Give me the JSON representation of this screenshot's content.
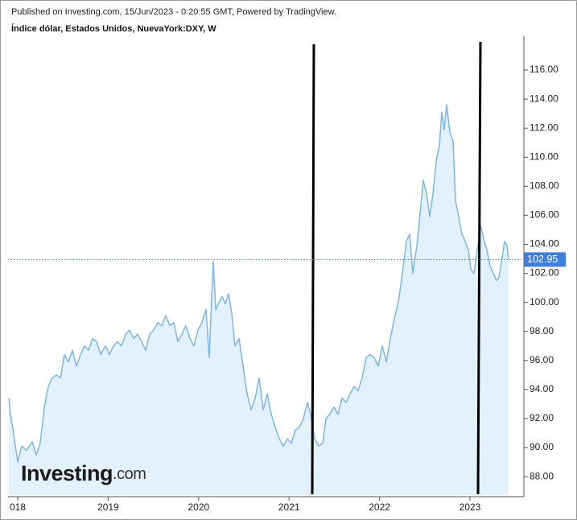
{
  "chart_data": {
    "type": "area",
    "source": "Published on Investing.com, 15/Jun/2023 - 0:20:55 GMT, Powered by TradingView.",
    "title": "Índice dólar, Estados Unidos, NuevaYork:DXY, W",
    "watermark": "Investing",
    "watermark_suffix": ".com",
    "line_color": "#7db6e8",
    "fill_color": "#e2f1fb",
    "price_line_color": "#3d7fd9",
    "x": [
      2017.902,
      2017.92,
      2017.956,
      2018.0,
      2018.044,
      2018.098,
      2018.16,
      2018.205,
      2018.249,
      2018.294,
      2018.338,
      2018.383,
      2018.427,
      2018.472,
      2018.516,
      2018.56,
      2018.605,
      2018.649,
      2018.694,
      2018.738,
      2018.783,
      2018.827,
      2018.872,
      2018.916,
      2018.97,
      2019.014,
      2019.059,
      2019.103,
      2019.148,
      2019.192,
      2019.237,
      2019.281,
      2019.326,
      2019.37,
      2019.415,
      2019.459,
      2019.504,
      2019.548,
      2019.593,
      2019.637,
      2019.681,
      2019.726,
      2019.77,
      2019.815,
      2019.859,
      2019.904,
      2019.948,
      2019.993,
      2020.037,
      2020.082,
      2020.117,
      2020.144,
      2020.162,
      2020.189,
      2020.224,
      2020.26,
      2020.295,
      2020.331,
      2020.367,
      2020.402,
      2020.447,
      2020.491,
      2020.536,
      2020.58,
      2020.625,
      2020.669,
      2020.714,
      2020.758,
      2020.802,
      2020.847,
      2020.891,
      2020.936,
      2020.98,
      2021.025,
      2021.069,
      2021.114,
      2021.158,
      2021.203,
      2021.238,
      2021.283,
      2021.327,
      2021.372,
      2021.408,
      2021.452,
      2021.496,
      2021.541,
      2021.585,
      2021.63,
      2021.674,
      2021.719,
      2021.763,
      2021.808,
      2021.852,
      2021.897,
      2021.941,
      2021.986,
      2022.03,
      2022.075,
      2022.119,
      2022.164,
      2022.208,
      2022.253,
      2022.297,
      2022.333,
      2022.368,
      2022.413,
      2022.448,
      2022.484,
      2022.52,
      2022.555,
      2022.591,
      2022.626,
      2022.662,
      2022.689,
      2022.715,
      2022.742,
      2022.778,
      2022.813,
      2022.84,
      2022.875,
      2022.911,
      2022.947,
      2022.982,
      2023.009,
      2023.044,
      2023.08,
      2023.116,
      2023.151,
      2023.187,
      2023.222,
      2023.258,
      2023.294,
      2023.32,
      2023.356,
      2023.382,
      2023.409,
      2023.427
    ],
    "values": [
      93.4,
      92.3,
      90.9,
      89.0,
      90.1,
      89.8,
      90.4,
      89.5,
      90.3,
      92.8,
      94.2,
      94.8,
      95.0,
      94.8,
      96.4,
      95.9,
      96.7,
      95.6,
      96.4,
      97.0,
      96.7,
      97.5,
      97.3,
      96.4,
      97.0,
      96.4,
      97.0,
      97.3,
      97.0,
      97.8,
      98.1,
      97.5,
      97.8,
      97.3,
      96.7,
      97.8,
      98.1,
      98.6,
      98.4,
      99.1,
      98.4,
      98.6,
      97.3,
      97.8,
      98.4,
      97.5,
      97.0,
      98.1,
      98.6,
      99.5,
      96.2,
      100.3,
      102.8,
      99.5,
      100.0,
      100.4,
      99.9,
      100.6,
      99.2,
      97.0,
      97.5,
      95.6,
      93.7,
      92.6,
      93.4,
      94.8,
      92.6,
      93.7,
      92.3,
      91.4,
      90.6,
      90.1,
      90.6,
      90.3,
      91.2,
      91.4,
      92.0,
      93.1,
      92.3,
      90.6,
      90.1,
      90.3,
      92.0,
      92.3,
      92.8,
      92.3,
      93.4,
      93.1,
      93.7,
      94.2,
      93.9,
      94.8,
      96.2,
      96.4,
      96.2,
      95.6,
      97.0,
      95.9,
      97.5,
      98.9,
      100.0,
      102.0,
      104.2,
      104.7,
      102.0,
      103.9,
      106.1,
      108.4,
      107.5,
      105.9,
      107.5,
      109.7,
      110.8,
      113.1,
      111.9,
      113.6,
      111.7,
      111.1,
      107.0,
      105.9,
      104.7,
      104.2,
      103.6,
      102.3,
      102.0,
      103.6,
      105.3,
      104.4,
      103.6,
      102.5,
      102.0,
      101.5,
      101.7,
      103.1,
      104.2,
      103.9,
      102.95
    ],
    "xlim": [
      2017.893,
      2023.596
    ],
    "ylim": [
      86.73,
      118.33
    ],
    "xticks": [
      {
        "value": 2018,
        "label": "018"
      },
      2019,
      2020,
      2021,
      2022,
      2023
    ],
    "yticks": [
      {
        "value": 88,
        "label": "88.00"
      },
      {
        "value": 90,
        "label": "90.00"
      },
      {
        "value": 92,
        "label": "92.00"
      },
      {
        "value": 94,
        "label": "94.00"
      },
      {
        "value": 96,
        "label": "96.00"
      },
      {
        "value": 98,
        "label": "98.00"
      },
      {
        "value": 100,
        "label": "100.00"
      },
      {
        "value": 102,
        "label": "102.00"
      },
      {
        "value": 104,
        "label": "104.00"
      },
      {
        "value": 106,
        "label": "106.00"
      },
      {
        "value": 108,
        "label": "108.00"
      },
      {
        "value": 110,
        "label": "110.00"
      },
      {
        "value": 112,
        "label": "112.00"
      },
      {
        "value": 114,
        "label": "114.00"
      },
      {
        "value": 116,
        "label": "116.00"
      }
    ]
  }
}
